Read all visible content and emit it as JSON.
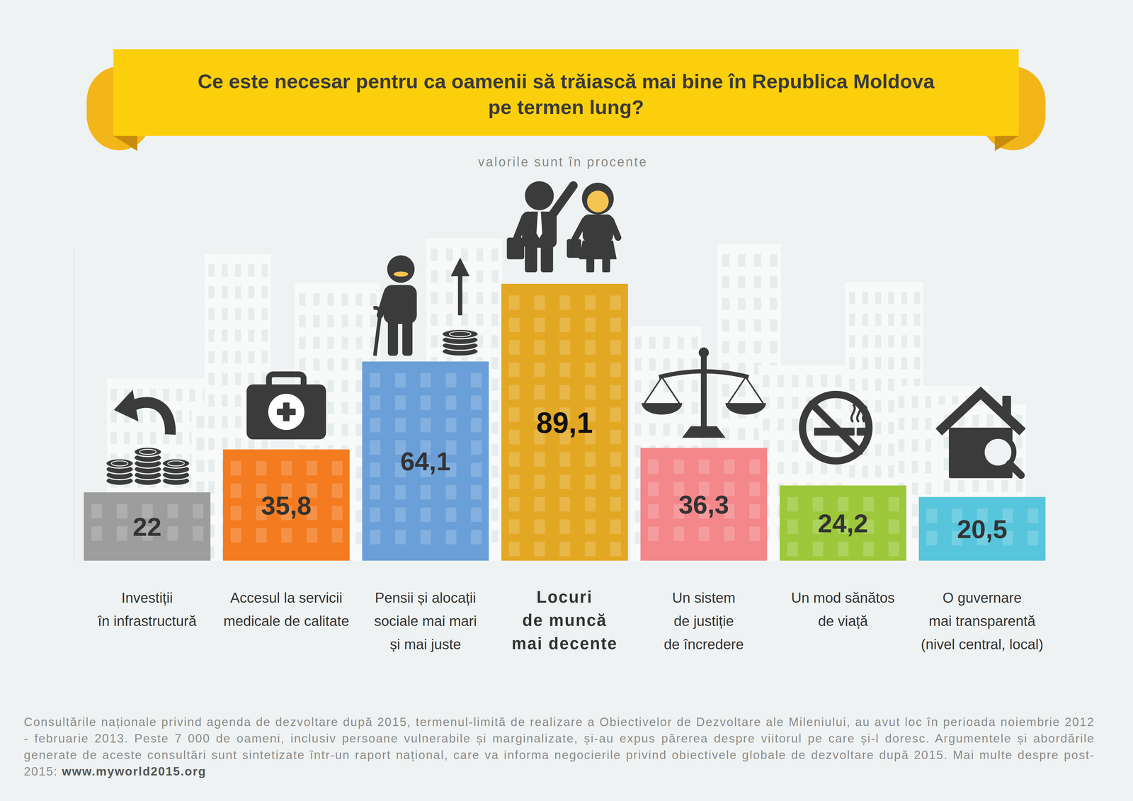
{
  "chart_data": {
    "type": "bar",
    "title": "Ce este necesar pentru ca oamenii să trăiască mai bine în Republica Moldova\npe termen lung?",
    "subtitle": "valorile sunt în procente",
    "categories": [
      "Investiții\nîn infrastructură",
      "Accesul la servicii\nmedicale de calitate",
      "Pensii și alocații\nsociale mai mari\nși mai juste",
      "Locuri\nde muncă\nmai decente",
      "Un sistem\nde justiție\nde încredere",
      "Un mod sănătos\nde viață",
      "O guvernare\nmai transparentă\n(nivel central, local)"
    ],
    "values": [
      22,
      35.8,
      64.1,
      89.1,
      36.3,
      24.2,
      20.5
    ],
    "value_labels": [
      "22",
      "35,8",
      "64,1",
      "89,1",
      "36,3",
      "24,2",
      "20,5"
    ],
    "colors": [
      "#9d9d9d",
      "#f47b20",
      "#6a9fd8",
      "#e3a823",
      "#f3878a",
      "#9dc83b",
      "#57c5dc"
    ],
    "ylim": [
      0,
      100
    ],
    "data_labels": true,
    "tick_labels": false,
    "grid": false,
    "footnote": "Consultările naționale privind agenda de dezvoltare după 2015, termenul-limită de realizare a Obiectivelor de Dezvoltare ale Mileniului, au avut loc în perioada noiembrie 2012 - februarie 2013. Peste 7 000 de oameni, inclusiv persoane vulnerabile și marginalizate, și-au expus părerea despre viitorul pe care și-l doresc. Argumentele și abordările generate de aceste consultări sunt sintetizate într-un raport național, care va informa negocierile privind obiectivele globale de dezvoltare după 2015. Mai multe despre post-2015:",
    "footnote_link": "www.myworld2015.org"
  }
}
